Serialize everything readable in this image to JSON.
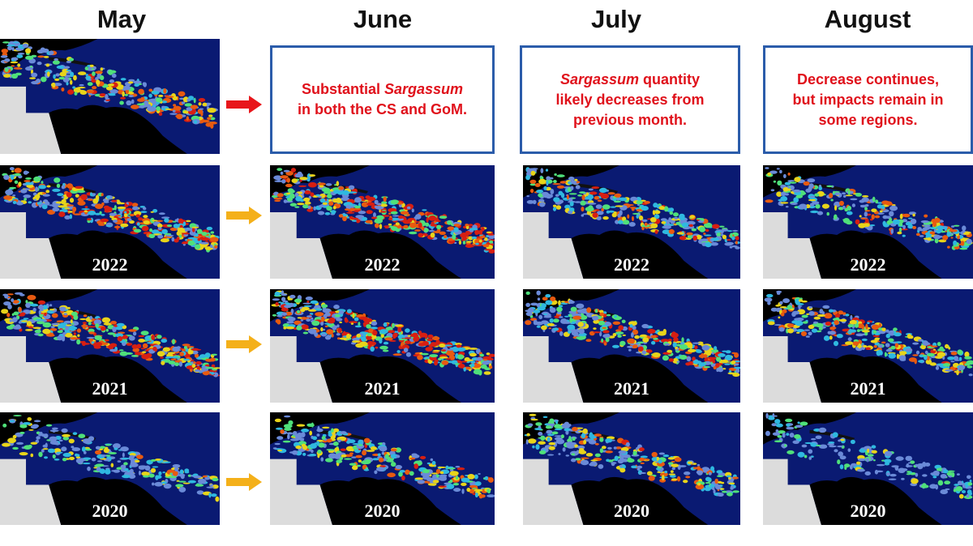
{
  "columns": [
    "May",
    "June",
    "July",
    "August"
  ],
  "notes": {
    "june": {
      "line1_pre": "Substantial ",
      "line1_em": "Sargassum",
      "line2": "in both the CS and GoM."
    },
    "july": {
      "line1_em": "Sargassum",
      "line1_post": " quantity",
      "line2": "likely decreases from",
      "line3": "previous month."
    },
    "august": {
      "line1": "Decrease continues,",
      "line2": "but impacts remain in",
      "line3": "some regions."
    }
  },
  "years": [
    "2022",
    "2021",
    "2020"
  ],
  "colors": {
    "ocean": "#0a1a72",
    "land": "#000000",
    "land_grey": "#dcdcdc",
    "red_arrow": "#e8161b",
    "yellow_arrow": "#f4b01a",
    "note_border": "#2b5caa",
    "note_text": "#e0111b"
  },
  "arrows": [
    "red",
    "yellow",
    "yellow",
    "yellow"
  ]
}
